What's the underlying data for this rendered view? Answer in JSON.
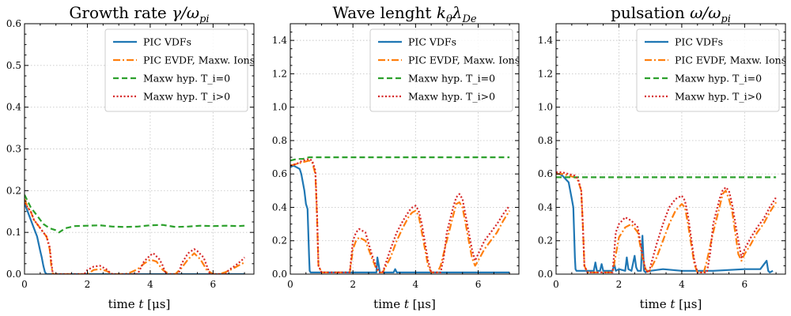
{
  "colors": {
    "pic_vdfs": "#1f77b4",
    "pic_evdf": "#ff7f0e",
    "maxw_t0": "#2ca02c",
    "maxw_tpos": "#d62728"
  },
  "chart_data": [
    {
      "type": "line",
      "title": "Growth rate γ/ω_pi",
      "title_main": "Growth rate ",
      "title_math": "γ/ω",
      "title_sub": "pi",
      "xlabel": "time t [μs]",
      "xlabel_main": "time ",
      "xlabel_var": "t",
      "xlabel_unit": " [μs]",
      "xlim": [
        0,
        7.3
      ],
      "ylim": [
        0,
        0.6
      ],
      "xticks": [
        0,
        2,
        4,
        6
      ],
      "xtick_labels": [
        "0",
        "2",
        "4",
        "6"
      ],
      "yticks": [
        0,
        0.1,
        0.2,
        0.3,
        0.4,
        0.5,
        0.6
      ],
      "ytick_labels": [
        "0.0",
        "0.1",
        "0.2",
        "0.3",
        "0.4",
        "0.5",
        "0.6"
      ],
      "grid": true,
      "legend_position": "top-right",
      "series": [
        {
          "name": "PIC VDFs",
          "style": "solid",
          "x": [
            0,
            0.1,
            0.2,
            0.3,
            0.4,
            0.5,
            0.55,
            0.6,
            0.65,
            0.7,
            7.0
          ],
          "y": [
            0.17,
            0.15,
            0.13,
            0.11,
            0.09,
            0.055,
            0.04,
            0.02,
            0.005,
            0,
            0
          ]
        },
        {
          "name": "PIC EVDF, Maxw. Ions",
          "style": "dashdot",
          "x": [
            0,
            0.1,
            0.2,
            0.3,
            0.4,
            0.5,
            0.6,
            0.7,
            0.8,
            0.85,
            0.9,
            2.0,
            2.2,
            2.4,
            2.6,
            2.8,
            3.0,
            3.2,
            3.4,
            3.6,
            3.8,
            4.0,
            4.2,
            4.4,
            4.6,
            4.8,
            5.0,
            5.2,
            5.4,
            5.6,
            5.8,
            6.0,
            6.2,
            6.4,
            6.6,
            6.8,
            7.0
          ],
          "y": [
            0.18,
            0.16,
            0.15,
            0.13,
            0.12,
            0.11,
            0.1,
            0.09,
            0.06,
            0.02,
            0,
            0,
            0.01,
            0.012,
            0.008,
            0,
            0,
            0,
            0.005,
            0.012,
            0.025,
            0.035,
            0.03,
            0.01,
            0,
            0,
            0.015,
            0.035,
            0.05,
            0.035,
            0.01,
            0,
            0,
            0.005,
            0.012,
            0.02,
            0.028
          ]
        },
        {
          "name": "Maxw hyp. T_i=0",
          "style": "dashed",
          "x": [
            0,
            0.2,
            0.4,
            0.6,
            0.8,
            1.0,
            1.1,
            1.3,
            1.6,
            2.0,
            2.4,
            2.8,
            3.2,
            3.6,
            4.0,
            4.4,
            4.8,
            5.2,
            5.6,
            6.0,
            6.4,
            6.8,
            7.0
          ],
          "y": [
            0.19,
            0.16,
            0.14,
            0.12,
            0.11,
            0.105,
            0.1,
            0.11,
            0.115,
            0.116,
            0.117,
            0.114,
            0.113,
            0.114,
            0.117,
            0.118,
            0.113,
            0.114,
            0.116,
            0.115,
            0.116,
            0.115,
            0.116
          ]
        },
        {
          "name": "Maxw hyp. T_i>0",
          "style": "dotted",
          "x": [
            0,
            0.1,
            0.2,
            0.3,
            0.4,
            0.5,
            0.6,
            0.7,
            0.8,
            0.85,
            0.9,
            1.9,
            2.0,
            2.2,
            2.4,
            2.6,
            2.7,
            2.8,
            3.6,
            3.8,
            4.0,
            4.1,
            4.3,
            4.4,
            4.5,
            4.9,
            5.0,
            5.2,
            5.4,
            5.5,
            5.7,
            5.8,
            5.9,
            6.4,
            6.5,
            6.7,
            6.9,
            7.0
          ],
          "y": [
            0.17,
            0.16,
            0.15,
            0.13,
            0.12,
            0.11,
            0.1,
            0.09,
            0.065,
            0.03,
            0,
            0,
            0.01,
            0.018,
            0.02,
            0.012,
            0.005,
            0,
            0,
            0.03,
            0.045,
            0.05,
            0.035,
            0.02,
            0,
            0,
            0.025,
            0.05,
            0.06,
            0.055,
            0.04,
            0.02,
            0,
            0,
            0.01,
            0.02,
            0.032,
            0.04
          ]
        }
      ]
    },
    {
      "type": "line",
      "title": "Wave lenght k_θλ_De",
      "title_main": "Wave lenght ",
      "title_k": "k",
      "title_k_sub": "θ",
      "title_lambda": "λ",
      "title_lambda_sub": "De",
      "xlabel": "time t [μs]",
      "xlabel_main": "time ",
      "xlabel_var": "t",
      "xlabel_unit": " [μs]",
      "xlim": [
        0,
        7.3
      ],
      "ylim": [
        0,
        1.5
      ],
      "xticks": [
        0,
        2,
        4,
        6
      ],
      "xtick_labels": [
        "0",
        "2",
        "4",
        "6"
      ],
      "yticks": [
        0,
        0.2,
        0.4,
        0.6,
        0.8,
        1.0,
        1.2,
        1.4
      ],
      "ytick_labels": [
        "0.0",
        "0.2",
        "0.4",
        "0.6",
        "0.8",
        "1.0",
        "1.2",
        "1.4"
      ],
      "grid": true,
      "legend_position": "top-right",
      "series": [
        {
          "name": "PIC VDFs",
          "style": "solid",
          "x": [
            0,
            0.1,
            0.2,
            0.3,
            0.35,
            0.45,
            0.5,
            0.55,
            0.6,
            0.62,
            0.65,
            0.7,
            2.75,
            2.78,
            2.82,
            2.86,
            3.3,
            3.35,
            3.4,
            7.0
          ],
          "y": [
            0.64,
            0.65,
            0.64,
            0.63,
            0.6,
            0.5,
            0.42,
            0.39,
            0.1,
            0.02,
            0.01,
            0.01,
            0.01,
            0.1,
            0.06,
            0.01,
            0.01,
            0.03,
            0.01,
            0.01
          ]
        },
        {
          "name": "PIC EVDF, Maxw. Ions",
          "style": "dashdot",
          "x": [
            0,
            0.2,
            0.4,
            0.6,
            0.7,
            0.8,
            0.85,
            0.9,
            1.0,
            1.9,
            2.0,
            2.1,
            2.2,
            2.4,
            2.6,
            2.75,
            2.85,
            2.95,
            3.2,
            3.4,
            3.6,
            3.8,
            3.9,
            4.0,
            4.1,
            4.2,
            4.4,
            4.5,
            4.7,
            4.8,
            5.0,
            5.2,
            5.3,
            5.4,
            5.5,
            5.6,
            5.8,
            5.9,
            6.0,
            6.2,
            6.4,
            6.6,
            6.8,
            7.0
          ],
          "y": [
            0.65,
            0.66,
            0.67,
            0.68,
            0.67,
            0.6,
            0.35,
            0.05,
            0.01,
            0.01,
            0.15,
            0.2,
            0.22,
            0.2,
            0.1,
            0.03,
            0.01,
            0.01,
            0.1,
            0.2,
            0.28,
            0.35,
            0.37,
            0.38,
            0.35,
            0.25,
            0.05,
            0.01,
            0.01,
            0.05,
            0.2,
            0.35,
            0.42,
            0.43,
            0.4,
            0.3,
            0.1,
            0.05,
            0.08,
            0.15,
            0.2,
            0.25,
            0.32,
            0.38
          ]
        },
        {
          "name": "Maxw hyp. T_i=0",
          "style": "dashed",
          "x": [
            0,
            0.2,
            0.4,
            0.6,
            0.8,
            1.0,
            1.5,
            2.0,
            3.0,
            4.0,
            5.0,
            6.0,
            7.0
          ],
          "y": [
            0.68,
            0.69,
            0.69,
            0.7,
            0.7,
            0.7,
            0.7,
            0.7,
            0.7,
            0.7,
            0.7,
            0.7,
            0.7
          ]
        },
        {
          "name": "Maxw hyp. T_i>0",
          "style": "dotted",
          "x": [
            0,
            0.2,
            0.4,
            0.6,
            0.7,
            0.8,
            0.85,
            0.9,
            1.0,
            1.9,
            2.0,
            2.1,
            2.2,
            2.4,
            2.6,
            2.75,
            2.85,
            2.95,
            3.2,
            3.4,
            3.6,
            3.8,
            3.9,
            4.0,
            4.1,
            4.2,
            4.4,
            4.5,
            4.8,
            4.9,
            5.0,
            5.2,
            5.3,
            5.4,
            5.5,
            5.6,
            5.8,
            5.9,
            6.0,
            6.2,
            6.4,
            6.6,
            6.8,
            7.0
          ],
          "y": [
            0.65,
            0.66,
            0.68,
            0.69,
            0.68,
            0.62,
            0.38,
            0.05,
            0.01,
            0.01,
            0.2,
            0.25,
            0.27,
            0.25,
            0.12,
            0.04,
            0.01,
            0.01,
            0.15,
            0.25,
            0.32,
            0.38,
            0.4,
            0.41,
            0.38,
            0.3,
            0.08,
            0.01,
            0.01,
            0.1,
            0.25,
            0.4,
            0.46,
            0.48,
            0.45,
            0.35,
            0.15,
            0.08,
            0.12,
            0.2,
            0.25,
            0.3,
            0.36,
            0.41
          ]
        }
      ]
    },
    {
      "type": "line",
      "title": "pulsation ω/ω_pi",
      "title_main": "pulsation ",
      "title_math": "ω/ω",
      "title_sub": "pi",
      "xlabel": "time t [μs]",
      "xlabel_main": "time ",
      "xlabel_var": "t",
      "xlabel_unit": " [μs]",
      "xlim": [
        0,
        7.3
      ],
      "ylim": [
        0,
        1.5
      ],
      "xticks": [
        0,
        2,
        4,
        6
      ],
      "xtick_labels": [
        "0",
        "2",
        "4",
        "6"
      ],
      "yticks": [
        0,
        0.2,
        0.4,
        0.6,
        0.8,
        1.0,
        1.2,
        1.4
      ],
      "ytick_labels": [
        "0.0",
        "0.2",
        "0.4",
        "0.6",
        "0.8",
        "1.0",
        "1.2",
        "1.4"
      ],
      "grid": true,
      "legend_position": "top-right",
      "series": [
        {
          "name": "PIC VDFs",
          "style": "solid",
          "x": [
            0,
            0.1,
            0.2,
            0.3,
            0.4,
            0.5,
            0.55,
            0.6,
            0.62,
            0.65,
            1.0,
            1.2,
            1.25,
            1.3,
            1.4,
            1.45,
            1.5,
            1.8,
            1.85,
            1.9,
            2.0,
            2.2,
            2.25,
            2.3,
            2.4,
            2.5,
            2.55,
            2.6,
            2.7,
            2.75,
            2.8,
            2.85,
            2.9,
            3.0,
            3.4,
            4.0,
            5.0,
            6.0,
            6.5,
            6.7,
            6.75,
            6.8,
            6.9
          ],
          "y": [
            0.6,
            0.6,
            0.59,
            0.57,
            0.55,
            0.45,
            0.4,
            0.1,
            0.03,
            0.02,
            0.02,
            0.02,
            0.07,
            0.02,
            0.02,
            0.06,
            0.02,
            0.02,
            0.06,
            0.02,
            0.03,
            0.02,
            0.1,
            0.03,
            0.02,
            0.11,
            0.04,
            0.02,
            0.02,
            0.23,
            0.02,
            0.01,
            0.02,
            0.02,
            0.03,
            0.02,
            0.02,
            0.03,
            0.03,
            0.08,
            0.02,
            0.01,
            0.02
          ]
        },
        {
          "name": "PIC EVDF, Maxw. Ions",
          "style": "dashdot",
          "x": [
            0,
            0.2,
            0.4,
            0.6,
            0.7,
            0.8,
            0.85,
            0.9,
            1.0,
            1.8,
            2.0,
            2.2,
            2.4,
            2.6,
            2.75,
            2.85,
            2.95,
            3.2,
            3.4,
            3.6,
            3.8,
            3.9,
            4.0,
            4.1,
            4.2,
            4.4,
            4.5,
            4.7,
            4.8,
            5.0,
            5.2,
            5.3,
            5.4,
            5.5,
            5.6,
            5.8,
            5.9,
            6.0,
            6.2,
            6.4,
            6.6,
            6.8,
            7.0
          ],
          "y": [
            0.6,
            0.6,
            0.59,
            0.58,
            0.56,
            0.5,
            0.3,
            0.05,
            0.01,
            0.01,
            0.22,
            0.28,
            0.3,
            0.25,
            0.1,
            0.03,
            0.01,
            0.1,
            0.2,
            0.3,
            0.38,
            0.4,
            0.42,
            0.4,
            0.3,
            0.06,
            0.01,
            0.01,
            0.08,
            0.25,
            0.4,
            0.48,
            0.5,
            0.45,
            0.38,
            0.12,
            0.08,
            0.12,
            0.18,
            0.25,
            0.3,
            0.37,
            0.43
          ]
        },
        {
          "name": "Maxw hyp. T_i=0",
          "style": "dashed",
          "x": [
            0,
            0.2,
            0.4,
            0.6,
            0.8,
            1.0,
            2.0,
            3.0,
            4.0,
            5.0,
            6.0,
            7.0
          ],
          "y": [
            0.58,
            0.58,
            0.58,
            0.58,
            0.58,
            0.58,
            0.58,
            0.58,
            0.58,
            0.58,
            0.58,
            0.58
          ]
        },
        {
          "name": "Maxw hyp. T_i>0",
          "style": "dotted",
          "x": [
            0,
            0.2,
            0.4,
            0.6,
            0.7,
            0.8,
            0.85,
            0.9,
            1.0,
            1.8,
            1.9,
            2.0,
            2.2,
            2.4,
            2.6,
            2.75,
            2.85,
            2.95,
            3.2,
            3.4,
            3.6,
            3.8,
            3.9,
            4.0,
            4.1,
            4.2,
            4.4,
            4.5,
            4.8,
            4.9,
            5.0,
            5.2,
            5.3,
            5.4,
            5.5,
            5.6,
            5.8,
            5.9,
            6.0,
            6.2,
            6.4,
            6.6,
            6.8,
            7.0
          ],
          "y": [
            0.61,
            0.61,
            0.6,
            0.59,
            0.57,
            0.5,
            0.3,
            0.05,
            0.01,
            0.01,
            0.25,
            0.3,
            0.34,
            0.32,
            0.28,
            0.12,
            0.02,
            0.01,
            0.18,
            0.3,
            0.4,
            0.45,
            0.46,
            0.47,
            0.44,
            0.35,
            0.08,
            0.01,
            0.01,
            0.12,
            0.3,
            0.45,
            0.5,
            0.52,
            0.5,
            0.42,
            0.2,
            0.1,
            0.15,
            0.22,
            0.28,
            0.33,
            0.4,
            0.46
          ]
        }
      ]
    }
  ]
}
